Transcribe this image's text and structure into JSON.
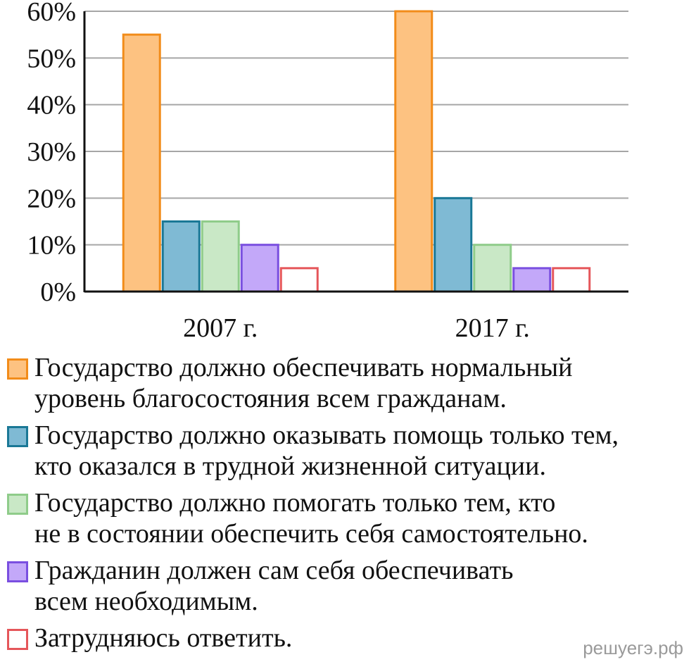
{
  "chart_data": {
    "type": "bar",
    "categories": [
      "2007 г.",
      "2017 г."
    ],
    "ylim": [
      0,
      60
    ],
    "yticks": [
      "0%",
      "10%",
      "20%",
      "30%",
      "40%",
      "50%",
      "60%"
    ],
    "grid": true,
    "series": [
      {
        "name": "Государство должно обеспечивать нормальный уровень благосостояния всем гражданам.",
        "values": [
          55,
          60
        ],
        "fill": "#fdc281",
        "stroke": "#f28c1a"
      },
      {
        "name": "Государство должно оказывать помощь только тем, кто оказался в трудной жизненной ситуации.",
        "values": [
          15,
          20
        ],
        "fill": "#7fbad4",
        "stroke": "#1a7896"
      },
      {
        "name": "Государство должно помогать только тем, кто не в состоянии обеспечить себя самостоятельно.",
        "values": [
          15,
          10
        ],
        "fill": "#c9e8c6",
        "stroke": "#8fcc8a"
      },
      {
        "name": "Гражданин должен сам себя обеспечивать всем необходимым.",
        "values": [
          10,
          5
        ],
        "fill": "#c3a8f9",
        "stroke": "#7a4fe0"
      },
      {
        "name": "Затрудняюсь ответить.",
        "values": [
          5,
          5
        ],
        "fill": "#ffffff",
        "stroke": "#e5565a"
      }
    ]
  },
  "legend": [
    {
      "text": "Государство должно обеспечивать нормальный\nуровень благосостояния всем гражданам."
    },
    {
      "text": "Государство должно оказывать помощь только тем,\nкто оказался в трудной жизненной ситуации."
    },
    {
      "text": "Государство должно помогать только тем, кто\nне в состоянии обеспечить себя самостоятельно."
    },
    {
      "text": "Гражданин должен сам себя обеспечивать\nвсем необходимым."
    },
    {
      "text": "Затрудняюсь ответить."
    }
  ],
  "watermark": "решуегэ.рф"
}
